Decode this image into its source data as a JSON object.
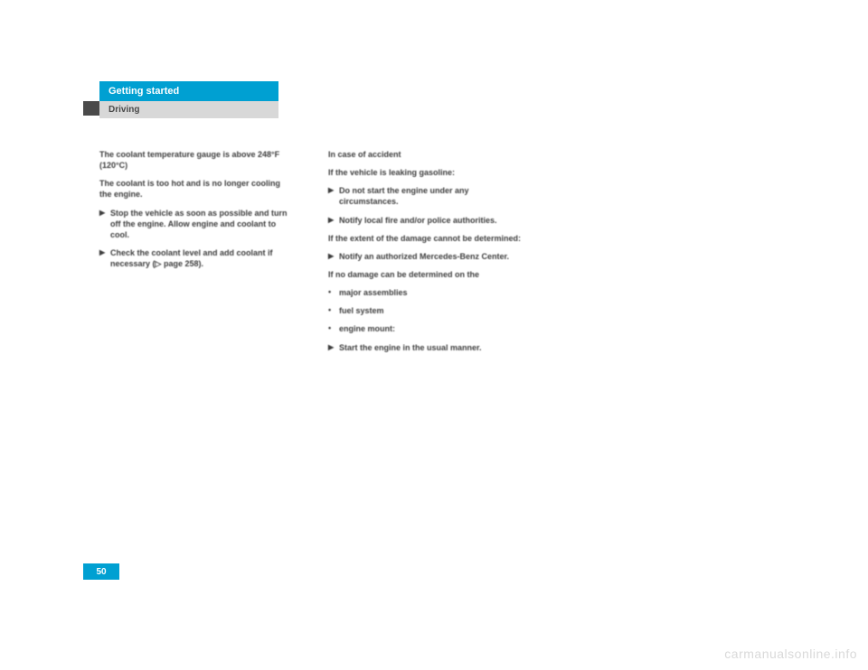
{
  "header": {
    "section_title": "Getting started",
    "subsection": "Driving"
  },
  "page_number": "50",
  "watermark": "carmanualsonline.info",
  "col1": {
    "heading1": "The coolant temperature gauge is above 248°F (120°C)",
    "para1": "The coolant is too hot and is no longer cooling the engine.",
    "b1": "Stop the vehicle as soon as possible and turn off the engine. Allow engine and coolant to cool.",
    "b2": "Check the coolant level and add coolant if necessary (▷ page 258)."
  },
  "col2": {
    "heading1": "In case of accident",
    "para1": "If the vehicle is leaking gasoline:",
    "b1": "Do not start the engine under any circumstances.",
    "b2": "Notify local fire and/or police authorities.",
    "para2": "If the extent of the damage cannot be determined:",
    "b3": "Notify an authorized Mercedes-Benz Center.",
    "para3": "If no damage can be determined on the",
    "d1": "major assemblies",
    "d2": "fuel system",
    "d3": "engine mount:",
    "b4": "Start the engine in the usual manner."
  }
}
